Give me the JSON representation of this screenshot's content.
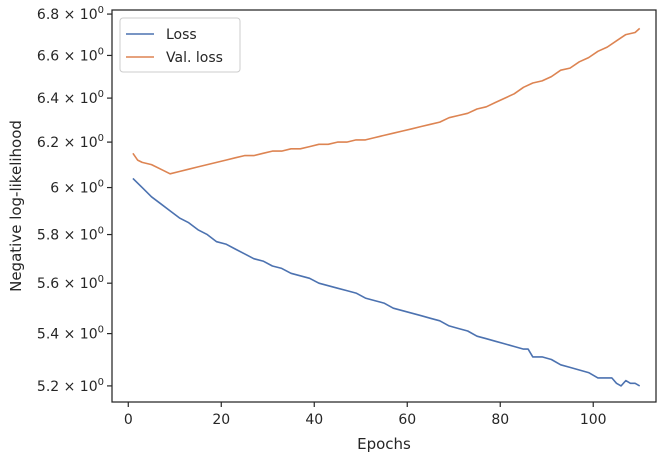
{
  "chart_data": {
    "type": "line",
    "xlabel": "Epochs",
    "ylabel": "Negative log-likelihood",
    "xlim": [
      -3.5,
      113.5
    ],
    "ylim": [
      5.14,
      6.82
    ],
    "yscale": "log",
    "grid": false,
    "legend_position": "top-left",
    "xticks": [
      0,
      20,
      40,
      60,
      80,
      100
    ],
    "xtick_labels": [
      "0",
      "20",
      "40",
      "60",
      "80",
      "100"
    ],
    "yticks": [
      5.2,
      5.4,
      5.6,
      5.8,
      6.0,
      6.2,
      6.4,
      6.6,
      6.8
    ],
    "ytick_mantissas": [
      "5.2",
      "5.4",
      "5.6",
      "5.8",
      "6",
      "6.2",
      "6.4",
      "6.6",
      "6.8"
    ],
    "ytick_base_text": "× 10",
    "ytick_exponent": "0",
    "series": [
      {
        "name": "Loss",
        "color": "#4c72b0",
        "x": [
          1,
          3,
          5,
          7,
          9,
          11,
          13,
          15,
          17,
          19,
          21,
          23,
          25,
          27,
          29,
          31,
          33,
          35,
          37,
          39,
          41,
          43,
          45,
          47,
          49,
          51,
          53,
          55,
          57,
          59,
          61,
          63,
          65,
          67,
          69,
          71,
          73,
          75,
          77,
          79,
          81,
          83,
          85,
          86,
          87,
          89,
          91,
          93,
          95,
          97,
          99,
          101,
          103,
          104,
          105,
          106,
          107,
          108,
          109,
          110
        ],
        "values": [
          6.04,
          6.0,
          5.96,
          5.93,
          5.9,
          5.87,
          5.85,
          5.82,
          5.8,
          5.77,
          5.76,
          5.74,
          5.72,
          5.7,
          5.69,
          5.67,
          5.66,
          5.64,
          5.63,
          5.62,
          5.6,
          5.59,
          5.58,
          5.57,
          5.56,
          5.54,
          5.53,
          5.52,
          5.5,
          5.49,
          5.48,
          5.47,
          5.46,
          5.45,
          5.43,
          5.42,
          5.41,
          5.39,
          5.38,
          5.37,
          5.36,
          5.35,
          5.34,
          5.34,
          5.31,
          5.31,
          5.3,
          5.28,
          5.27,
          5.26,
          5.25,
          5.23,
          5.23,
          5.23,
          5.21,
          5.2,
          5.22,
          5.21,
          5.21,
          5.2
        ]
      },
      {
        "name": "Val. loss",
        "color": "#dd8452",
        "x": [
          1,
          2,
          3,
          5,
          7,
          9,
          11,
          13,
          15,
          17,
          19,
          21,
          23,
          25,
          27,
          29,
          31,
          33,
          35,
          37,
          39,
          41,
          43,
          45,
          47,
          49,
          51,
          53,
          55,
          57,
          59,
          61,
          63,
          65,
          67,
          69,
          71,
          73,
          75,
          77,
          79,
          81,
          83,
          85,
          87,
          89,
          91,
          93,
          95,
          97,
          99,
          101,
          103,
          105,
          107,
          109,
          110
        ],
        "values": [
          6.15,
          6.12,
          6.11,
          6.1,
          6.08,
          6.06,
          6.07,
          6.08,
          6.09,
          6.1,
          6.11,
          6.12,
          6.13,
          6.14,
          6.14,
          6.15,
          6.16,
          6.16,
          6.17,
          6.17,
          6.18,
          6.19,
          6.19,
          6.2,
          6.2,
          6.21,
          6.21,
          6.22,
          6.23,
          6.24,
          6.25,
          6.26,
          6.27,
          6.28,
          6.29,
          6.31,
          6.32,
          6.33,
          6.35,
          6.36,
          6.38,
          6.4,
          6.42,
          6.45,
          6.47,
          6.48,
          6.5,
          6.53,
          6.54,
          6.57,
          6.59,
          6.62,
          6.64,
          6.67,
          6.7,
          6.71,
          6.73
        ]
      }
    ]
  }
}
